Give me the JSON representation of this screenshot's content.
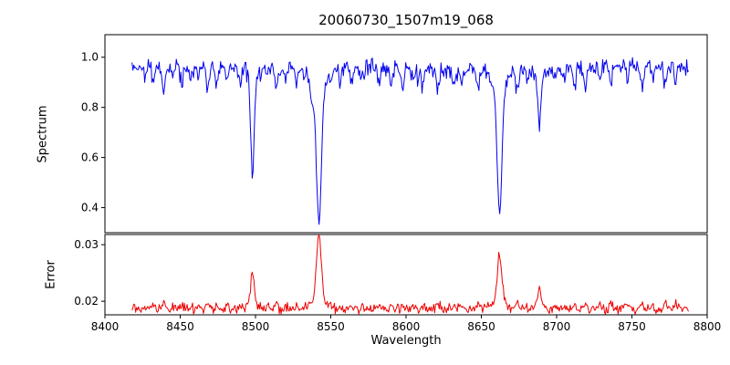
{
  "chart_data": {
    "type": "line",
    "title": "20060730_1507m19_068",
    "xlabel": "Wavelength",
    "xlim": [
      8400,
      8800
    ],
    "x_ticks": [
      8400,
      8450,
      8500,
      8550,
      8600,
      8650,
      8700,
      8750,
      8800
    ],
    "x_tick_labels": [
      "8400",
      "8450",
      "8500",
      "8550",
      "8600",
      "8650",
      "8700",
      "8750",
      "8800"
    ],
    "x_start": 8418,
    "x_end": 8788,
    "step": 0.6,
    "seed": 42,
    "legend": "none",
    "grid": false,
    "panels": [
      {
        "name": "spectrum",
        "ylabel": "Spectrum",
        "ylim": [
          0.3,
          1.09
        ],
        "y_ticks": [
          0.4,
          0.6,
          0.8,
          1.0
        ],
        "y_tick_labels": [
          "0.4",
          "0.6",
          "0.8",
          "1.0"
        ],
        "color": "#0000ee",
        "continuum": 0.965,
        "noise_sigma": 0.015,
        "strong_lines": [
          {
            "center": 8498.0,
            "min_flux": 0.51,
            "sigma": 1.0
          },
          {
            "center": 8542.1,
            "min_flux": 0.35,
            "sigma": 1.6
          },
          {
            "center": 8662.1,
            "min_flux": 0.38,
            "sigma": 1.5
          },
          {
            "center": 8688.6,
            "min_flux": 0.71,
            "sigma": 0.9
          }
        ],
        "weak_lines": [
          [
            8427,
            0.05
          ],
          [
            8432,
            0.07
          ],
          [
            8439,
            0.1
          ],
          [
            8445,
            0.05
          ],
          [
            8451,
            0.07
          ],
          [
            8457,
            0.05
          ],
          [
            8462,
            0.06
          ],
          [
            8468,
            0.09
          ],
          [
            8474,
            0.06
          ],
          [
            8481,
            0.05
          ],
          [
            8490,
            0.07
          ],
          [
            8508,
            0.05
          ],
          [
            8514,
            0.1
          ],
          [
            8520,
            0.06
          ],
          [
            8527,
            0.05
          ],
          [
            8537,
            0.06
          ],
          [
            8556,
            0.05
          ],
          [
            8564,
            0.06
          ],
          [
            8571,
            0.04
          ],
          [
            8582,
            0.07
          ],
          [
            8590,
            0.05
          ],
          [
            8598,
            0.08
          ],
          [
            8605,
            0.04
          ],
          [
            8611,
            0.06
          ],
          [
            8621,
            0.09
          ],
          [
            8632,
            0.05
          ],
          [
            8637,
            0.05
          ],
          [
            8648,
            0.08
          ],
          [
            8674,
            0.11
          ],
          [
            8680,
            0.06
          ],
          [
            8699,
            0.05
          ],
          [
            8705,
            0.04
          ],
          [
            8712,
            0.09
          ],
          [
            8719,
            0.05
          ],
          [
            8729,
            0.06
          ],
          [
            8736,
            0.08
          ],
          [
            8747,
            0.05
          ],
          [
            8757,
            0.09
          ],
          [
            8764,
            0.05
          ],
          [
            8772,
            0.08
          ],
          [
            8779,
            0.05
          ]
        ]
      },
      {
        "name": "error",
        "ylabel": "Error",
        "ylim": [
          0.0176,
          0.0318
        ],
        "y_ticks": [
          0.02,
          0.03
        ],
        "y_tick_labels": [
          "0.02",
          "0.03"
        ],
        "color": "#ee0000",
        "baseline": 0.0186,
        "noise_sigma": 0.0004,
        "peaks": [
          [
            8498.0,
            0.006,
            1.2
          ],
          [
            8542.1,
            0.0125,
            1.6
          ],
          [
            8662.1,
            0.009,
            1.5
          ],
          [
            8688.6,
            0.0036,
            1.0
          ]
        ]
      }
    ]
  }
}
